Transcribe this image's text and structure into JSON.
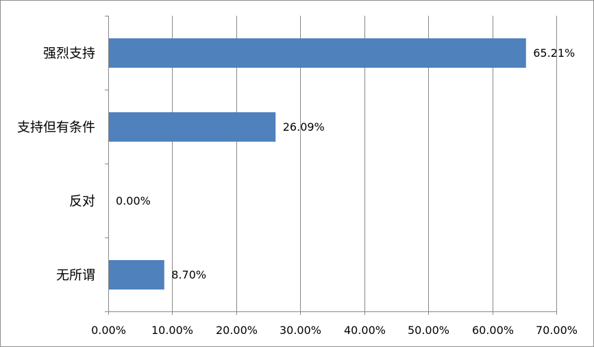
{
  "chart_data": {
    "type": "bar",
    "orientation": "horizontal",
    "categories": [
      "强烈支持",
      "支持但有条件",
      "反对",
      "无所谓"
    ],
    "values": [
      65.21,
      26.09,
      0.0,
      8.7
    ],
    "value_labels": [
      "65.21%",
      "26.09%",
      "0.00%",
      "8.70%"
    ],
    "xlim": [
      0,
      70
    ],
    "x_ticks": [
      0,
      10,
      20,
      30,
      40,
      50,
      60,
      70
    ],
    "x_tick_labels": [
      "0.00%",
      "10.00%",
      "20.00%",
      "30.00%",
      "40.00%",
      "50.00%",
      "60.00%",
      "70.00%"
    ],
    "title": "",
    "xlabel": "",
    "ylabel": "",
    "grid": "vertical major gridlines",
    "legend": "none",
    "bar_color": "#4f81bd",
    "grid_color": "#868686"
  }
}
